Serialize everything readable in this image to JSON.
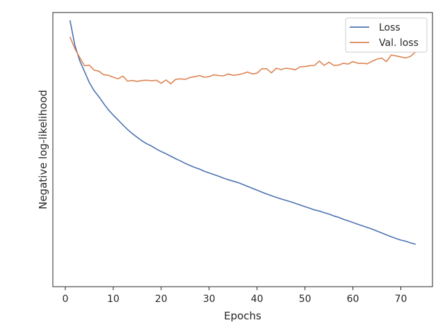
{
  "chart_data": {
    "type": "line",
    "title": "",
    "xlabel": "Epochs",
    "ylabel": "Negative log-likelihood",
    "xlim": [
      -2.6,
      76.6
    ],
    "ylim": [
      0.0,
      1.0
    ],
    "yticks_shown": false,
    "xticks": [
      0,
      10,
      20,
      30,
      40,
      50,
      60,
      70
    ],
    "grid": false,
    "legend_position": "top-right",
    "series": [
      {
        "name": "Loss",
        "color": "#4c72b0",
        "x": [
          1,
          2,
          3,
          4,
          5,
          6,
          7,
          8,
          9,
          10,
          11,
          12,
          13,
          14,
          15,
          16,
          17,
          18,
          19,
          20,
          21,
          22,
          23,
          24,
          25,
          26,
          27,
          28,
          29,
          30,
          31,
          32,
          33,
          34,
          35,
          36,
          37,
          38,
          39,
          40,
          41,
          42,
          43,
          44,
          45,
          46,
          47,
          48,
          49,
          50,
          51,
          52,
          53,
          54,
          55,
          56,
          57,
          58,
          59,
          60,
          61,
          62,
          63,
          64,
          65,
          66,
          67,
          68,
          69,
          70,
          71,
          72,
          73
        ],
        "y": [
          0.97,
          0.88,
          0.825,
          0.785,
          0.745,
          0.715,
          0.693,
          0.668,
          0.645,
          0.626,
          0.608,
          0.59,
          0.573,
          0.558,
          0.545,
          0.532,
          0.521,
          0.513,
          0.502,
          0.493,
          0.485,
          0.476,
          0.467,
          0.459,
          0.45,
          0.442,
          0.435,
          0.429,
          0.421,
          0.415,
          0.409,
          0.403,
          0.396,
          0.39,
          0.385,
          0.38,
          0.373,
          0.366,
          0.359,
          0.352,
          0.345,
          0.338,
          0.332,
          0.326,
          0.32,
          0.315,
          0.31,
          0.304,
          0.298,
          0.292,
          0.286,
          0.28,
          0.276,
          0.27,
          0.265,
          0.258,
          0.253,
          0.246,
          0.24,
          0.234,
          0.228,
          0.222,
          0.216,
          0.21,
          0.203,
          0.196,
          0.189,
          0.182,
          0.176,
          0.17,
          0.166,
          0.16,
          0.155
        ]
      },
      {
        "name": "Val. loss",
        "color": "#dd8452",
        "x": [
          1,
          2,
          3,
          4,
          5,
          6,
          7,
          8,
          9,
          10,
          11,
          12,
          13,
          14,
          15,
          16,
          17,
          18,
          19,
          20,
          21,
          22,
          23,
          24,
          25,
          26,
          27,
          28,
          29,
          30,
          31,
          32,
          33,
          34,
          35,
          36,
          37,
          38,
          39,
          40,
          41,
          42,
          43,
          44,
          45,
          46,
          47,
          48,
          49,
          50,
          51,
          52,
          53,
          54,
          55,
          56,
          57,
          58,
          59,
          60,
          61,
          62,
          63,
          64,
          65,
          66,
          67,
          68,
          69,
          70,
          71,
          72,
          73
        ],
        "y": [
          0.91,
          0.868,
          0.836,
          0.806,
          0.808,
          0.79,
          0.786,
          0.773,
          0.771,
          0.764,
          0.758,
          0.768,
          0.75,
          0.752,
          0.749,
          0.752,
          0.753,
          0.751,
          0.753,
          0.742,
          0.754,
          0.74,
          0.756,
          0.758,
          0.756,
          0.763,
          0.766,
          0.77,
          0.764,
          0.766,
          0.773,
          0.77,
          0.769,
          0.776,
          0.771,
          0.773,
          0.777,
          0.783,
          0.776,
          0.779,
          0.795,
          0.795,
          0.78,
          0.797,
          0.792,
          0.797,
          0.795,
          0.791,
          0.802,
          0.803,
          0.806,
          0.807,
          0.823,
          0.807,
          0.819,
          0.807,
          0.808,
          0.815,
          0.812,
          0.821,
          0.815,
          0.815,
          0.813,
          0.822,
          0.83,
          0.834,
          0.821,
          0.845,
          0.842,
          0.838,
          0.834,
          0.84,
          0.855
        ]
      }
    ]
  }
}
